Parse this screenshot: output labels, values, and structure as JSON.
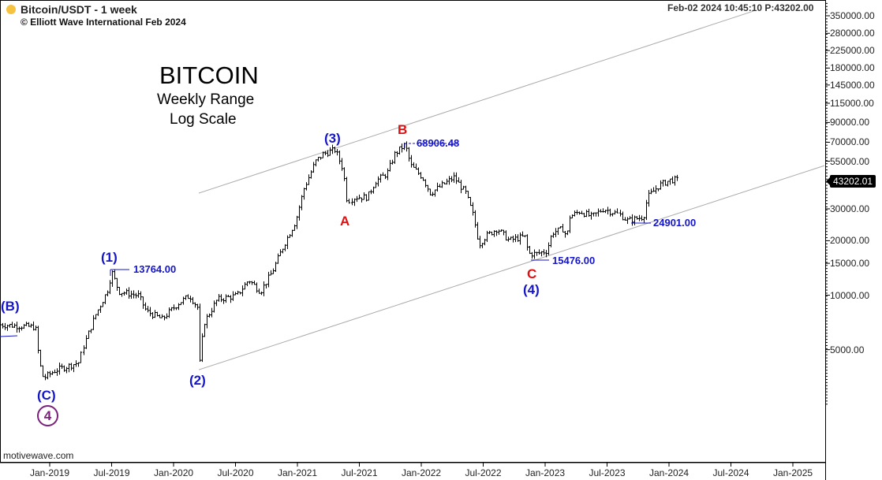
{
  "header": {
    "symbol": "Bitcoin/USDT",
    "interval": "- 1 week",
    "copyright": "© Elliott Wave International Feb 2024",
    "status": "Feb-02 2024  10:45:10  P:43202.00",
    "indicator_color": "#f5c242"
  },
  "title": {
    "main": "BITCOIN",
    "line1": "Weekly Range",
    "line2": "Log Scale"
  },
  "footer": "motivewave.com",
  "last_price_badge": "43202.01",
  "chart_data": {
    "type": "bar",
    "title": "BITCOIN",
    "subtitle": "Weekly Range, Log Scale",
    "xlabel": "",
    "ylabel": "",
    "yscale": "log",
    "ylim": [
      2000,
      420000
    ],
    "xlim": [
      2018.6,
      2025.28
    ],
    "grid": false,
    "y_ticks": [
      350000,
      280000,
      225000,
      180000,
      145000,
      115000,
      90000,
      70000,
      55000,
      30000,
      20000,
      15000,
      10000,
      5000
    ],
    "y_tick_labels": [
      "350000.00",
      "280000.00",
      "225000.00",
      "180000.00",
      "145000.00",
      "115000.00",
      "90000.00",
      "70000.00",
      "55000.00",
      "30000.00",
      "20000.00",
      "15000.00",
      "10000.00",
      "5000.00"
    ],
    "x_ticks": [
      2019,
      2019.5,
      2020,
      2020.5,
      2021,
      2021.5,
      2022,
      2022.5,
      2023,
      2023.5,
      2024,
      2024.5,
      2025
    ],
    "x_tick_labels": [
      "Jan-2019",
      "Jul-2019",
      "Jan-2020",
      "Jul-2020",
      "Jan-2021",
      "Jul-2021",
      "Jan-2022",
      "Jul-2022",
      "Jan-2023",
      "Jul-2023",
      "Jan-2024",
      "Jul-2024",
      "Jan-2025"
    ],
    "price_path_anchors": [
      [
        2018.6,
        6870
      ],
      [
        2018.885,
        6670
      ],
      [
        2018.917,
        4250
      ],
      [
        2018.949,
        3475
      ],
      [
        2019.045,
        3840
      ],
      [
        2019.236,
        4250
      ],
      [
        2019.268,
        5190
      ],
      [
        2019.363,
        7740
      ],
      [
        2019.459,
        10470
      ],
      [
        2019.497,
        13460
      ],
      [
        2019.554,
        10470
      ],
      [
        2019.713,
        9950
      ],
      [
        2019.777,
        8150
      ],
      [
        2019.904,
        7370
      ],
      [
        2020.032,
        8990
      ],
      [
        2020.127,
        9950
      ],
      [
        2020.191,
        8570
      ],
      [
        2020.204,
        3870
      ],
      [
        2020.242,
        7000
      ],
      [
        2020.35,
        9460
      ],
      [
        2020.51,
        9950
      ],
      [
        2020.605,
        12160
      ],
      [
        2020.701,
        10470
      ],
      [
        2020.796,
        13460
      ],
      [
        2020.892,
        19100
      ],
      [
        2020.987,
        25800
      ],
      [
        2021.051,
        38550
      ],
      [
        2021.146,
        54700
      ],
      [
        2021.21,
        60500
      ],
      [
        2021.306,
        63650
      ],
      [
        2021.369,
        49550
      ],
      [
        2021.401,
        33100
      ],
      [
        2021.465,
        34800
      ],
      [
        2021.561,
        34800
      ],
      [
        2021.624,
        42550
      ],
      [
        2021.72,
        47100
      ],
      [
        2021.783,
        60500
      ],
      [
        2021.866,
        68200
      ],
      [
        2021.911,
        52000
      ],
      [
        2022.006,
        44800
      ],
      [
        2022.07,
        36650
      ],
      [
        2022.166,
        40550
      ],
      [
        2022.261,
        44800
      ],
      [
        2022.357,
        36650
      ],
      [
        2022.42,
        27100
      ],
      [
        2022.465,
        19100
      ],
      [
        2022.516,
        21100
      ],
      [
        2022.611,
        23350
      ],
      [
        2022.707,
        20100
      ],
      [
        2022.834,
        21100
      ],
      [
        2022.866,
        16950
      ],
      [
        2022.93,
        16950
      ],
      [
        2023.013,
        17600
      ],
      [
        2023.057,
        22200
      ],
      [
        2023.153,
        23350
      ],
      [
        2023.172,
        20100
      ],
      [
        2023.197,
        27100
      ],
      [
        2023.28,
        29100
      ],
      [
        2023.376,
        27100
      ],
      [
        2023.471,
        30000
      ],
      [
        2023.599,
        27900
      ],
      [
        2023.662,
        25800
      ],
      [
        2023.79,
        27100
      ],
      [
        2023.822,
        34800
      ],
      [
        2023.917,
        40550
      ],
      [
        2024.013,
        43450
      ],
      [
        2024.076,
        43202
      ]
    ],
    "channel_lines": [
      {
        "name": "upper",
        "from": [
          2020.204,
          36650
        ],
        "to": [
          2024.682,
          371500
        ],
        "color": "#aaaaaa"
      },
      {
        "name": "lower",
        "from": [
          2020.204,
          3870
        ],
        "to": [
          2025.255,
          52000
        ],
        "color": "#aaaaaa"
      }
    ],
    "annotations": {
      "wave_B_minor": "(B)",
      "wave_C_minor": "(C)",
      "wave_4_circle": "4",
      "wave_1": "(1)",
      "wave_2": "(2)",
      "wave_3": "(3)",
      "wave_4": "(4)",
      "wave_A": "A",
      "wave_B": "B",
      "wave_C": "C",
      "price_13764": "13764.00",
      "price_68906": "68906.48",
      "price_15476": "15476.00",
      "price_24901": "24901.00"
    },
    "colors": {
      "wave": "#1515c8",
      "abc": "#e01010",
      "cycle": "#7a1f7a",
      "bars": "#000000"
    }
  }
}
